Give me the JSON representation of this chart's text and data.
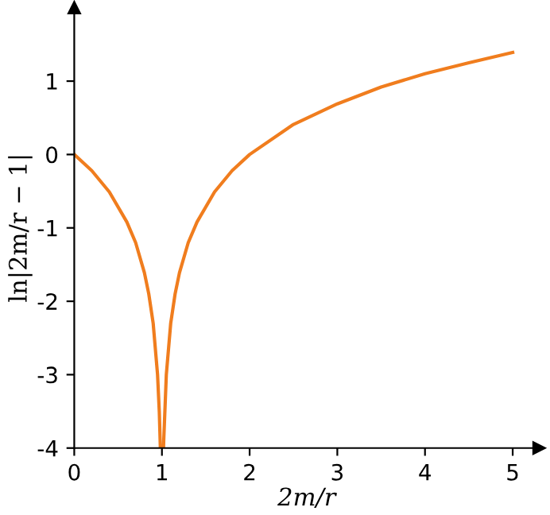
{
  "chart_data": {
    "type": "line",
    "xlabel": "2m/r",
    "ylabel": "ln|2m/r − 1|",
    "x": [
      0,
      0.2,
      0.4,
      0.6,
      0.7,
      0.8,
      0.85,
      0.9,
      0.95,
      0.97,
      0.982,
      1.0,
      1.018,
      1.02,
      1.05,
      1.1,
      1.15,
      1.2,
      1.3,
      1.4,
      1.6,
      1.8,
      2,
      2.5,
      3,
      3.5,
      4,
      4.5,
      5
    ],
    "series": [
      {
        "color": "#f07d1e",
        "values": [
          0,
          -0.22,
          -0.51,
          -0.92,
          -1.2,
          -1.61,
          -1.9,
          -2.3,
          -3.0,
          -3.51,
          -4.0,
          null,
          -4.0,
          -3.91,
          -3.0,
          -2.3,
          -1.9,
          -1.61,
          -1.2,
          -0.92,
          -0.51,
          -0.22,
          0,
          0.41,
          0.69,
          0.92,
          1.1,
          1.25,
          1.39
        ]
      }
    ],
    "xlim": [
      0,
      5.3
    ],
    "ylim": [
      -4,
      2
    ],
    "xticks": [
      0,
      1,
      2,
      3,
      4,
      5
    ],
    "yticks": [
      {
        "value": -4,
        "label": "-4"
      },
      {
        "value": -3,
        "label": "-3"
      },
      {
        "value": -2,
        "label": "-2"
      },
      {
        "value": -1,
        "label": "-1"
      },
      0,
      1
    ],
    "grid": false,
    "legend": false,
    "marker": "none",
    "line_style": "solid"
  }
}
